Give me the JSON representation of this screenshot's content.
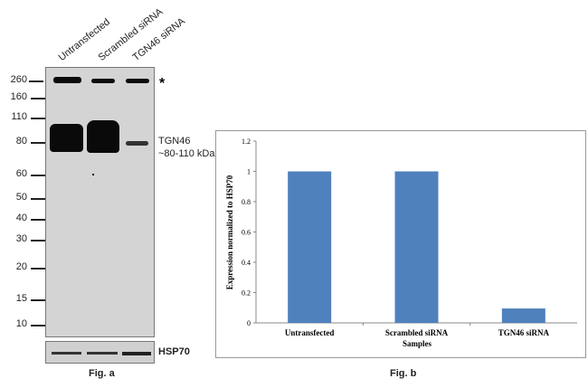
{
  "fig_a": {
    "lanes": [
      "Untransfected",
      "Scrambled siRNA",
      "TGN46 siRNA"
    ],
    "markers": [
      "260",
      "160",
      "110",
      "80",
      "60",
      "50",
      "40",
      "30",
      "20",
      "15",
      "10"
    ],
    "asterisk": "*",
    "band_label": "TGN46",
    "band_size": "~80-110 kDa",
    "loading_control": "HSP70",
    "caption": "Fig. a"
  },
  "fig_b": {
    "caption": "Fig. b"
  },
  "chart_data": {
    "type": "bar",
    "categories": [
      "Untransfected",
      "Scrambled siRNA",
      "TGN46 siRNA"
    ],
    "values": [
      1.0,
      1.0,
      0.095
    ],
    "xlabel": "Samples",
    "ylabel": "Expression normalized to HSP70",
    "ylim": [
      0,
      1.2
    ],
    "yticks": [
      "0",
      "0.2",
      "0.4",
      "0.6",
      "0.8",
      "1",
      "1.2"
    ],
    "bar_color": "#4f81bd",
    "grid": false
  }
}
